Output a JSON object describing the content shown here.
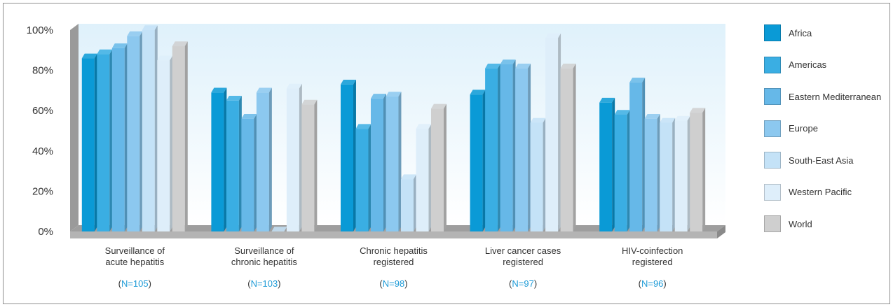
{
  "chart_data": {
    "type": "bar",
    "title": "",
    "xlabel": "",
    "ylabel": "",
    "ylim": [
      0,
      100
    ],
    "yticks": [
      "0%",
      "20%",
      "40%",
      "60%",
      "80%",
      "100%"
    ],
    "y_unit": "%",
    "grid": false,
    "legend_position": "right",
    "style": "3d",
    "categories": [
      {
        "lines": [
          "Surveillance of",
          "acute hepatitis"
        ],
        "n_prefix": "(",
        "n_value": "N=105",
        "n_suffix": ")"
      },
      {
        "lines": [
          "Surveillance of",
          "chronic hepatitis"
        ],
        "n_prefix": "(",
        "n_value": "N=103",
        "n_suffix": ")"
      },
      {
        "lines": [
          "Chronic hepatitis",
          "registered"
        ],
        "n_prefix": "(",
        "n_value": "N=98",
        "n_suffix": ")"
      },
      {
        "lines": [
          "Liver cancer cases",
          "registered"
        ],
        "n_prefix": "(",
        "n_value": "N=97",
        "n_suffix": ")"
      },
      {
        "lines": [
          "HIV-coinfection",
          "registered"
        ],
        "n_prefix": "(",
        "n_value": "N=96",
        "n_suffix": ")"
      }
    ],
    "series": [
      {
        "name": "Africa",
        "color": "#0a9ad6",
        "values": [
          86,
          69,
          73,
          68,
          64
        ]
      },
      {
        "name": "Americas",
        "color": "#3aaee3",
        "values": [
          88,
          65,
          51,
          81,
          58
        ]
      },
      {
        "name": "Eastern Mediterranean",
        "color": "#66b8e8",
        "values": [
          91,
          56,
          66,
          83,
          74
        ]
      },
      {
        "name": "Europe",
        "color": "#8cc8ef",
        "values": [
          97,
          69,
          67,
          81,
          56
        ]
      },
      {
        "name": "South-East Asia",
        "color": "#c4e2f7",
        "values": [
          100,
          0,
          26,
          54,
          54
        ]
      },
      {
        "name": "Western Pacific",
        "color": "#deeefa",
        "values": [
          85,
          71,
          51,
          96,
          55
        ]
      },
      {
        "name": "World",
        "color": "#cfcfcf",
        "values": [
          92,
          63,
          61,
          81,
          59
        ]
      }
    ]
  }
}
